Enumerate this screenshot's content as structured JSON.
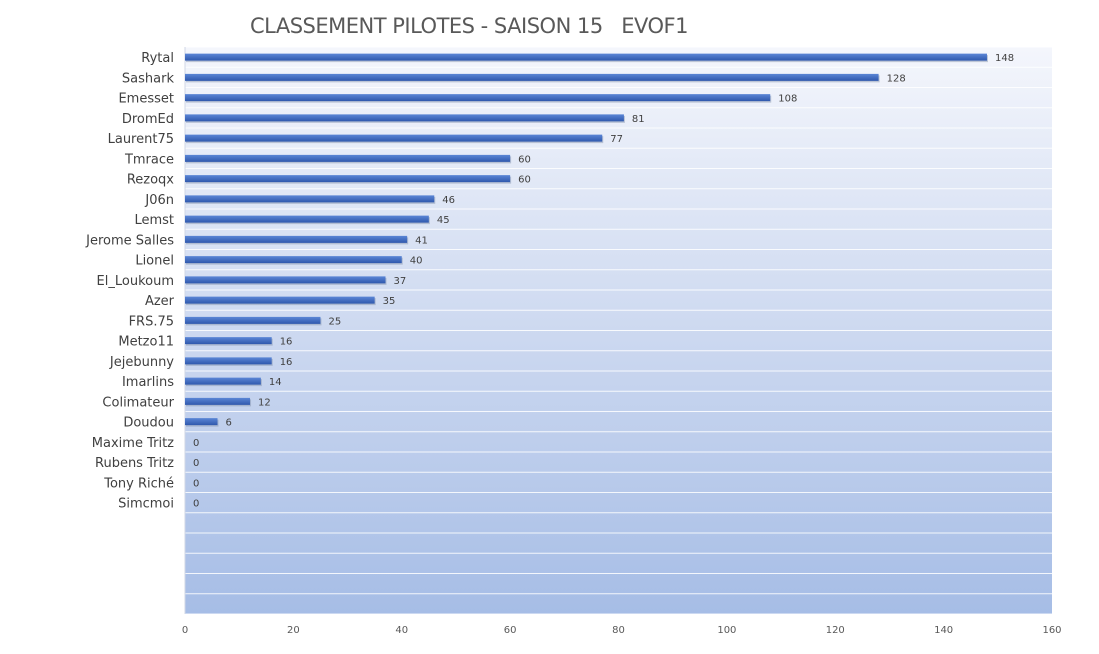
{
  "chart_data": {
    "type": "bar",
    "orientation": "horizontal",
    "title": "CLASSEMENT PILOTES - SAISON 15   EVOF1",
    "xlabel": "",
    "ylabel": "",
    "xlim": [
      0,
      160
    ],
    "x_ticks": [
      "0",
      "20",
      "40",
      "60",
      "80",
      "100",
      "120",
      "140",
      "160"
    ],
    "grid": "horizontal",
    "legend": "none",
    "bar_color": "#3f6cc4",
    "categories": [
      "Rytal",
      "Sashark",
      "Emesset",
      "DromEd",
      "Laurent75",
      "Tmrace",
      "Rezoqx",
      "J06n",
      "Lemst",
      "Jerome Salles",
      "Lionel",
      "El_Loukoum",
      "Azer",
      "FRS.75",
      "Metzo11",
      "Jejebunny",
      "Imarlins",
      "Colimateur",
      "Doudou",
      "Maxime Tritz",
      "Rubens Tritz",
      "Tony Riché",
      "Simcmoi",
      "",
      "",
      "",
      "",
      ""
    ],
    "values": [
      148,
      128,
      108,
      81,
      77,
      60,
      60,
      46,
      45,
      41,
      40,
      37,
      35,
      25,
      16,
      16,
      14,
      12,
      6,
      0,
      0,
      0,
      0,
      null,
      null,
      null,
      null,
      null
    ],
    "data_labels": [
      "148",
      "128",
      "108",
      "81",
      "77",
      "60",
      "60",
      "46",
      "45",
      "41",
      "40",
      "37",
      "35",
      "25",
      "16",
      "16",
      "14",
      "12",
      "6",
      "0",
      "0",
      "0",
      "0",
      "",
      "",
      "",
      "",
      ""
    ]
  }
}
